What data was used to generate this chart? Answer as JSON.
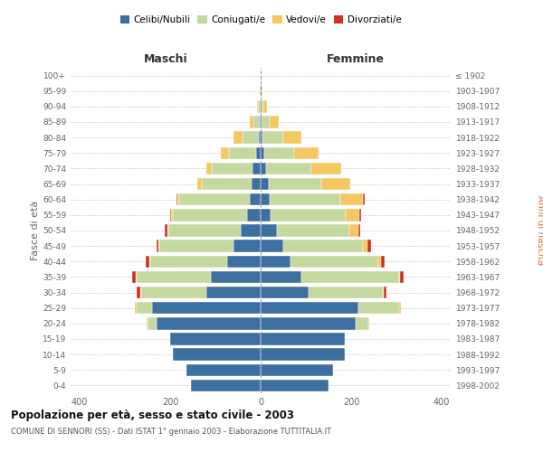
{
  "age_groups": [
    "0-4",
    "5-9",
    "10-14",
    "15-19",
    "20-24",
    "25-29",
    "30-34",
    "35-39",
    "40-44",
    "45-49",
    "50-54",
    "55-59",
    "60-64",
    "65-69",
    "70-74",
    "75-79",
    "80-84",
    "85-89",
    "90-94",
    "95-99",
    "100+"
  ],
  "birth_years": [
    "1998-2002",
    "1993-1997",
    "1988-1992",
    "1983-1987",
    "1978-1982",
    "1973-1977",
    "1968-1972",
    "1963-1967",
    "1958-1962",
    "1953-1957",
    "1948-1952",
    "1943-1947",
    "1938-1942",
    "1933-1937",
    "1928-1932",
    "1923-1927",
    "1918-1922",
    "1913-1917",
    "1908-1912",
    "1903-1907",
    "≤ 1902"
  ],
  "maschi": {
    "celibi": [
      155,
      165,
      195,
      200,
      230,
      240,
      120,
      110,
      75,
      60,
      45,
      30,
      25,
      20,
      18,
      10,
      5,
      2,
      1,
      0,
      0
    ],
    "coniugati": [
      0,
      0,
      0,
      0,
      20,
      35,
      145,
      165,
      170,
      165,
      160,
      165,
      155,
      110,
      90,
      60,
      35,
      15,
      5,
      1,
      0
    ],
    "vedovi": [
      0,
      0,
      0,
      0,
      2,
      3,
      1,
      1,
      1,
      1,
      2,
      3,
      5,
      10,
      12,
      18,
      20,
      8,
      3,
      1,
      0
    ],
    "divorziati": [
      0,
      0,
      0,
      0,
      0,
      0,
      8,
      8,
      8,
      5,
      5,
      3,
      2,
      0,
      0,
      0,
      0,
      0,
      0,
      0,
      0
    ]
  },
  "femmine": {
    "nubili": [
      150,
      160,
      185,
      185,
      210,
      215,
      105,
      90,
      65,
      50,
      35,
      22,
      20,
      18,
      12,
      8,
      4,
      2,
      1,
      0,
      0
    ],
    "coniugate": [
      0,
      0,
      0,
      0,
      28,
      90,
      165,
      215,
      195,
      175,
      160,
      165,
      155,
      115,
      100,
      65,
      45,
      18,
      5,
      1,
      0
    ],
    "vedove": [
      0,
      0,
      0,
      0,
      2,
      5,
      2,
      3,
      5,
      10,
      20,
      30,
      50,
      65,
      65,
      55,
      40,
      20,
      8,
      2,
      0
    ],
    "divorziate": [
      0,
      0,
      0,
      0,
      0,
      0,
      5,
      8,
      8,
      8,
      5,
      5,
      5,
      0,
      0,
      0,
      0,
      0,
      0,
      0,
      0
    ]
  },
  "colors": {
    "celibi": "#3d6fa0",
    "coniugati": "#c5d8a0",
    "vedovi": "#f5c760",
    "divorziati": "#d03020"
  },
  "xlim": 420,
  "title": "Popolazione per età, sesso e stato civile - 2003",
  "subtitle": "COMUNE DI SENNORI (SS) - Dati ISTAT 1° gennaio 2003 - Elaborazione TUTTITALIA.IT",
  "ylabel_left": "Fasce di età",
  "ylabel_right": "Anni di nascita",
  "xlabel_left": "Maschi",
  "xlabel_right": "Femmine",
  "bg_color": "#ffffff",
  "grid_color": "#cccccc"
}
